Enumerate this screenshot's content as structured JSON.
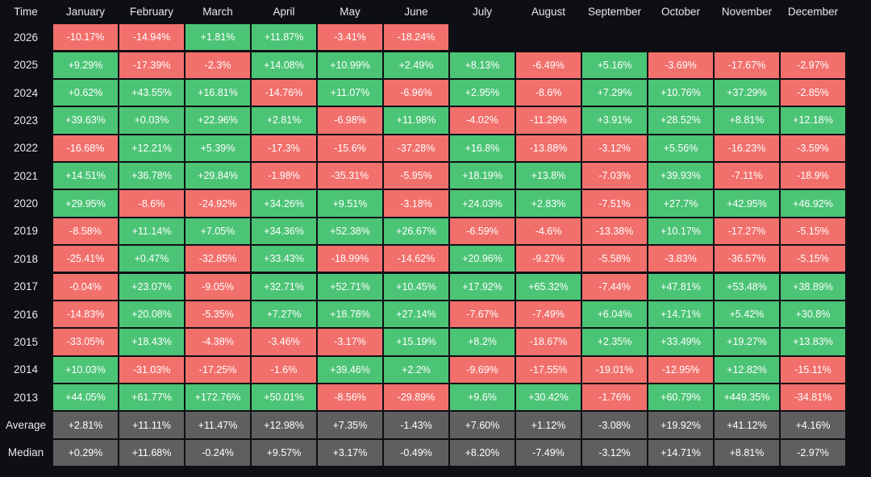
{
  "header": {
    "corner": "Time",
    "months": [
      "January",
      "February",
      "March",
      "April",
      "May",
      "June",
      "July",
      "August",
      "September",
      "October",
      "November",
      "December"
    ]
  },
  "colors": {
    "positive": "#4cc476",
    "negative": "#f2706c",
    "aggregate": "#5f5f5f",
    "background": "#0e0f14"
  },
  "rows": [
    {
      "label": "2026",
      "values": [
        "-10.17%",
        "-14.94%",
        "+1.81%",
        "+11.87%",
        "-3.41%",
        "-18.24%",
        "",
        "",
        "",
        "",
        "",
        ""
      ]
    },
    {
      "label": "2025",
      "values": [
        "+9.29%",
        "-17.39%",
        "-2.3%",
        "+14.08%",
        "+10.99%",
        "+2.49%",
        "+8.13%",
        "-6.49%",
        "+5.16%",
        "-3.69%",
        "-17.67%",
        "-2.97%"
      ]
    },
    {
      "label": "2024",
      "values": [
        "+0.62%",
        "+43.55%",
        "+16.81%",
        "-14.76%",
        "+11.07%",
        "-6.96%",
        "+2.95%",
        "-8.6%",
        "+7.29%",
        "+10.76%",
        "+37.29%",
        "-2.85%"
      ]
    },
    {
      "label": "2023",
      "values": [
        "+39.63%",
        "+0.03%",
        "+22.96%",
        "+2.81%",
        "-6.98%",
        "+11.98%",
        "-4.02%",
        "-11.29%",
        "+3.91%",
        "+28.52%",
        "+8.81%",
        "+12.18%"
      ]
    },
    {
      "label": "2022",
      "values": [
        "-16.68%",
        "+12.21%",
        "+5.39%",
        "-17.3%",
        "-15.6%",
        "-37.28%",
        "+16.8%",
        "-13.88%",
        "-3.12%",
        "+5.56%",
        "-16.23%",
        "-3.59%"
      ]
    },
    {
      "label": "2021",
      "values": [
        "+14.51%",
        "+36.78%",
        "+29.84%",
        "-1.98%",
        "-35.31%",
        "-5.95%",
        "+18.19%",
        "+13.8%",
        "-7.03%",
        "+39.93%",
        "-7.11%",
        "-18.9%"
      ]
    },
    {
      "label": "2020",
      "values": [
        "+29.95%",
        "-8.6%",
        "-24.92%",
        "+34.26%",
        "+9.51%",
        "-3.18%",
        "+24.03%",
        "+2.83%",
        "-7.51%",
        "+27.7%",
        "+42.95%",
        "+46.92%"
      ]
    },
    {
      "label": "2019",
      "values": [
        "-8.58%",
        "+11.14%",
        "+7.05%",
        "+34.36%",
        "+52.38%",
        "+26.67%",
        "-6.59%",
        "-4.6%",
        "-13.38%",
        "+10.17%",
        "-17.27%",
        "-5.15%"
      ]
    },
    {
      "label": "2018",
      "values": [
        "-25.41%",
        "+0.47%",
        "-32.85%",
        "+33.43%",
        "-18.99%",
        "-14.62%",
        "+20.96%",
        "-9.27%",
        "-5.58%",
        "-3.83%",
        "-36.57%",
        "-5.15%"
      ]
    },
    {
      "label": "2017",
      "values": [
        "-0.04%",
        "+23.07%",
        "-9.05%",
        "+32.71%",
        "+52.71%",
        "+10.45%",
        "+17.92%",
        "+65.32%",
        "-7.44%",
        "+47.81%",
        "+53.48%",
        "+38.89%"
      ]
    },
    {
      "label": "2016",
      "values": [
        "-14.83%",
        "+20.08%",
        "-5.35%",
        "+7.27%",
        "+18.78%",
        "+27.14%",
        "-7.67%",
        "-7.49%",
        "+6.04%",
        "+14.71%",
        "+5.42%",
        "+30.8%"
      ]
    },
    {
      "label": "2015",
      "values": [
        "-33.05%",
        "+18.43%",
        "-4.38%",
        "-3.46%",
        "-3.17%",
        "+15.19%",
        "+8.2%",
        "-18.67%",
        "+2.35%",
        "+33.49%",
        "+19.27%",
        "+13.83%"
      ]
    },
    {
      "label": "2014",
      "values": [
        "+10.03%",
        "-31.03%",
        "-17.25%",
        "-1.6%",
        "+39.46%",
        "+2.2%",
        "-9.69%",
        "-17.55%",
        "-19.01%",
        "-12.95%",
        "+12.82%",
        "-15.11%"
      ]
    },
    {
      "label": "2013",
      "values": [
        "+44.05%",
        "+61.77%",
        "+172.76%",
        "+50.01%",
        "-8.56%",
        "-29.89%",
        "+9.6%",
        "+30.42%",
        "-1.76%",
        "+60.79%",
        "+449.35%",
        "-34.81%"
      ]
    },
    {
      "label": "Average",
      "aggregate": true,
      "values": [
        "+2.81%",
        "+11.11%",
        "+11.47%",
        "+12.98%",
        "+7.35%",
        "-1.43%",
        "+7.60%",
        "+1.12%",
        "-3.08%",
        "+19.92%",
        "+41.12%",
        "+4.16%"
      ]
    },
    {
      "label": "Median",
      "aggregate": true,
      "values": [
        "+0.29%",
        "+11.68%",
        "-0.24%",
        "+9.57%",
        "+3.17%",
        "-0.49%",
        "+8.20%",
        "-7.49%",
        "-3.12%",
        "+14.71%",
        "+8.81%",
        "-2.97%"
      ]
    }
  ]
}
